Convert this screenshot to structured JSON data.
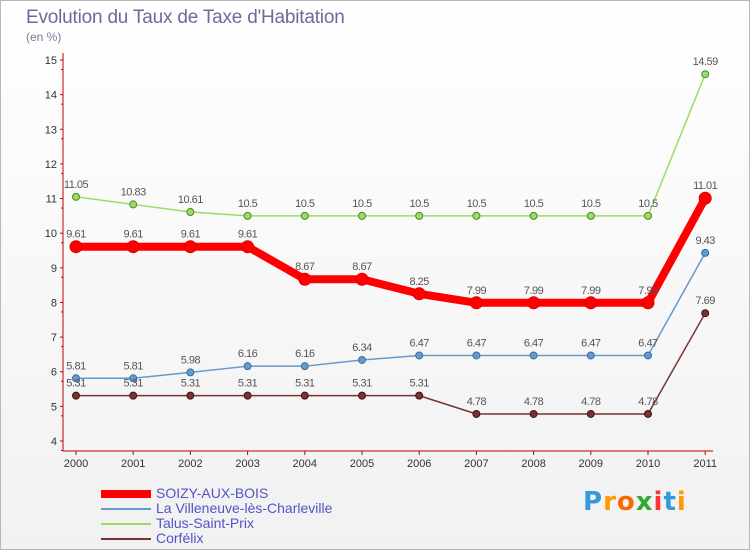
{
  "chart_data": {
    "type": "line",
    "title": "Evolution du Taux de Taxe d'Habitation",
    "subtitle": "(en %)",
    "xlabel": "",
    "ylabel": "",
    "ylim": [
      4,
      15
    ],
    "yticks": [
      "4",
      "5",
      "6",
      "7",
      "8",
      "9",
      "10",
      "11",
      "12",
      "13",
      "14",
      "15"
    ],
    "categories": [
      "2000",
      "2001",
      "2002",
      "2003",
      "2004",
      "2005",
      "2006",
      "2007",
      "2008",
      "2009",
      "2010",
      "2011"
    ],
    "grid": false,
    "legend_position": "bottom-left",
    "series": [
      {
        "name": "SOIZY-AUX-BOIS",
        "color": "#ff0000",
        "values": [
          9.61,
          9.61,
          9.61,
          9.61,
          8.67,
          8.67,
          8.25,
          7.99,
          7.99,
          7.99,
          7.99,
          11.01
        ],
        "labels": [
          "9.61",
          "9.61",
          "9.61",
          "9.61",
          "8.67",
          "8.67",
          "8.25",
          "7.99",
          "7.99",
          "7.99",
          "7.99",
          "11.01"
        ]
      },
      {
        "name": "La Villeneuve-lès-Charleville",
        "color": "#6699cc",
        "values": [
          5.81,
          5.81,
          5.98,
          6.16,
          6.16,
          6.34,
          6.47,
          6.47,
          6.47,
          6.47,
          6.47,
          9.43
        ],
        "labels": [
          "5.81",
          "5.81",
          "5.98",
          "6.16",
          "6.16",
          "6.34",
          "6.47",
          "6.47",
          "6.47",
          "6.47",
          "6.47",
          "9.43"
        ]
      },
      {
        "name": "Talus-Saint-Prix",
        "color": "#99dd66",
        "values": [
          11.05,
          10.83,
          10.61,
          10.5,
          10.5,
          10.5,
          10.5,
          10.5,
          10.5,
          10.5,
          10.5,
          14.59
        ],
        "labels": [
          "11.05",
          "10.83",
          "10.61",
          "10.5",
          "10.5",
          "10.5",
          "10.5",
          "10.5",
          "10.5",
          "10.5",
          "10.5",
          "14.59"
        ]
      },
      {
        "name": "Corfélix",
        "color": "#773333",
        "values": [
          5.31,
          5.31,
          5.31,
          5.31,
          5.31,
          5.31,
          5.31,
          4.78,
          4.78,
          4.78,
          4.78,
          7.69
        ],
        "labels": [
          "5.31",
          "5.31",
          "5.31",
          "5.31",
          "5.31",
          "5.31",
          "5.31",
          "4.78",
          "4.78",
          "4.78",
          "4.78",
          "7.69"
        ]
      }
    ]
  },
  "logo": {
    "text": "Proxiti",
    "letters": [
      "P",
      "r",
      "o",
      "x",
      "i",
      "t",
      "i"
    ],
    "colors": [
      "#3399dd",
      "#ff9900",
      "#ff6600",
      "#33aa33",
      "#ff3333",
      "#3399dd",
      "#ff9900"
    ]
  }
}
